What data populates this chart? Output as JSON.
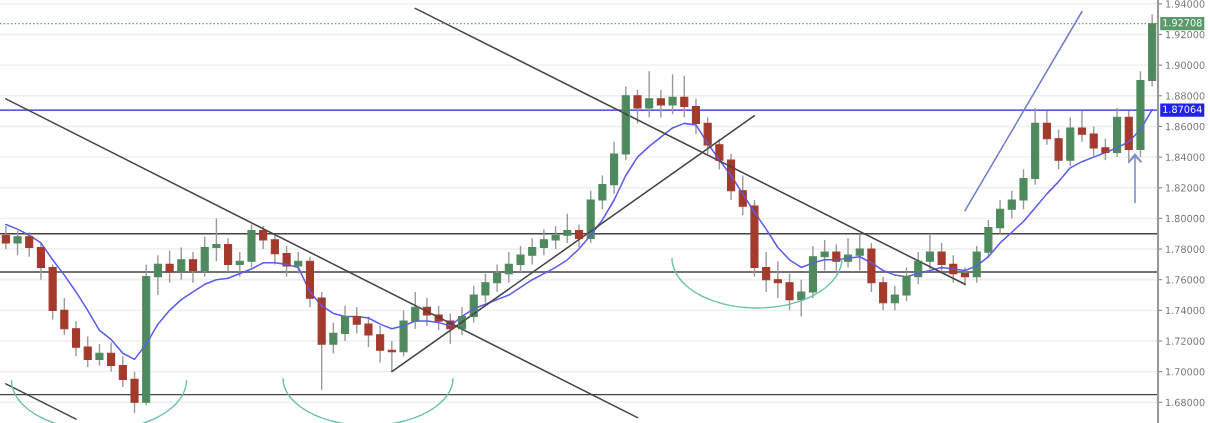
{
  "chart_data": {
    "type": "candlestick",
    "categories": [
      null,
      null,
      null,
      null,
      null,
      null,
      null,
      null,
      null,
      null,
      null,
      null,
      null,
      null,
      null,
      null,
      null,
      null,
      null,
      null,
      null,
      null,
      null,
      null,
      null,
      null,
      null,
      null,
      null,
      null,
      null,
      null,
      null,
      null,
      null,
      null,
      null,
      null,
      null,
      null,
      null,
      null,
      null,
      null,
      null,
      null,
      null,
      null,
      null,
      null,
      null,
      null,
      null,
      null,
      null,
      null,
      null,
      null,
      null,
      null,
      null,
      null,
      null,
      null,
      null,
      null,
      null,
      null,
      null,
      null,
      null,
      null,
      null,
      null,
      null,
      null,
      null,
      null,
      null,
      null,
      null,
      null,
      null,
      null,
      null,
      null,
      null,
      null,
      null,
      null,
      null,
      null,
      null,
      null,
      null,
      null,
      null,
      null,
      null
    ],
    "ohlc": [
      [
        1.789,
        1.795,
        1.78,
        1.784
      ],
      [
        1.784,
        1.792,
        1.776,
        1.788
      ],
      [
        1.788,
        1.791,
        1.775,
        1.781
      ],
      [
        1.781,
        1.784,
        1.76,
        1.768
      ],
      [
        1.768,
        1.77,
        1.734,
        1.74
      ],
      [
        1.74,
        1.748,
        1.724,
        1.728
      ],
      [
        1.728,
        1.733,
        1.71,
        1.716
      ],
      [
        1.716,
        1.723,
        1.703,
        1.708
      ],
      [
        1.708,
        1.718,
        1.704,
        1.712
      ],
      [
        1.712,
        1.719,
        1.7,
        1.704
      ],
      [
        1.704,
        1.71,
        1.69,
        1.695
      ],
      [
        1.695,
        1.7,
        1.673,
        1.68
      ],
      [
        1.68,
        1.77,
        1.678,
        1.762
      ],
      [
        1.762,
        1.776,
        1.75,
        1.77
      ],
      [
        1.77,
        1.779,
        1.758,
        1.765
      ],
      [
        1.765,
        1.781,
        1.76,
        1.773
      ],
      [
        1.773,
        1.778,
        1.758,
        1.766
      ],
      [
        1.766,
        1.788,
        1.762,
        1.781
      ],
      [
        1.781,
        1.8,
        1.772,
        1.783
      ],
      [
        1.783,
        1.787,
        1.765,
        1.77
      ],
      [
        1.77,
        1.778,
        1.762,
        1.772
      ],
      [
        1.772,
        1.796,
        1.768,
        1.792
      ],
      [
        1.792,
        1.795,
        1.78,
        1.786
      ],
      [
        1.786,
        1.79,
        1.77,
        1.777
      ],
      [
        1.777,
        1.782,
        1.762,
        1.769
      ],
      [
        1.769,
        1.778,
        1.764,
        1.772
      ],
      [
        1.772,
        1.775,
        1.742,
        1.748
      ],
      [
        1.748,
        1.752,
        1.688,
        1.718
      ],
      [
        1.718,
        1.732,
        1.712,
        1.725
      ],
      [
        1.725,
        1.743,
        1.72,
        1.736
      ],
      [
        1.736,
        1.742,
        1.725,
        1.731
      ],
      [
        1.731,
        1.736,
        1.716,
        1.724
      ],
      [
        1.724,
        1.73,
        1.706,
        1.714
      ],
      [
        1.714,
        1.72,
        1.7,
        1.713
      ],
      [
        1.713,
        1.74,
        1.71,
        1.733
      ],
      [
        1.733,
        1.752,
        1.728,
        1.742
      ],
      [
        1.742,
        1.748,
        1.73,
        1.737
      ],
      [
        1.737,
        1.743,
        1.727,
        1.733
      ],
      [
        1.733,
        1.738,
        1.718,
        1.728
      ],
      [
        1.728,
        1.742,
        1.724,
        1.736
      ],
      [
        1.736,
        1.756,
        1.732,
        1.75
      ],
      [
        1.75,
        1.764,
        1.745,
        1.758
      ],
      [
        1.758,
        1.77,
        1.752,
        1.764
      ],
      [
        1.764,
        1.778,
        1.758,
        1.77
      ],
      [
        1.77,
        1.782,
        1.765,
        1.776
      ],
      [
        1.776,
        1.787,
        1.77,
        1.781
      ],
      [
        1.781,
        1.793,
        1.776,
        1.786
      ],
      [
        1.786,
        1.795,
        1.78,
        1.789
      ],
      [
        1.789,
        1.803,
        1.784,
        1.792
      ],
      [
        1.792,
        1.796,
        1.781,
        1.787
      ],
      [
        1.787,
        1.818,
        1.784,
        1.812
      ],
      [
        1.812,
        1.828,
        1.806,
        1.822
      ],
      [
        1.822,
        1.85,
        1.816,
        1.842
      ],
      [
        1.842,
        1.886,
        1.838,
        1.88
      ],
      [
        1.88,
        1.884,
        1.862,
        1.872
      ],
      [
        1.872,
        1.896,
        1.866,
        1.878
      ],
      [
        1.878,
        1.884,
        1.866,
        1.874
      ],
      [
        1.874,
        1.894,
        1.868,
        1.879
      ],
      [
        1.879,
        1.893,
        1.866,
        1.873
      ],
      [
        1.873,
        1.878,
        1.855,
        1.862
      ],
      [
        1.862,
        1.866,
        1.842,
        1.848
      ],
      [
        1.848,
        1.852,
        1.832,
        1.838
      ],
      [
        1.838,
        1.842,
        1.812,
        1.818
      ],
      [
        1.818,
        1.828,
        1.802,
        1.808
      ],
      [
        1.808,
        1.812,
        1.762,
        1.768
      ],
      [
        1.768,
        1.778,
        1.752,
        1.76
      ],
      [
        1.76,
        1.772,
        1.748,
        1.758
      ],
      [
        1.758,
        1.764,
        1.74,
        1.747
      ],
      [
        1.747,
        1.76,
        1.736,
        1.752
      ],
      [
        1.752,
        1.782,
        1.748,
        1.775
      ],
      [
        1.775,
        1.786,
        1.766,
        1.778
      ],
      [
        1.778,
        1.783,
        1.764,
        1.772
      ],
      [
        1.772,
        1.787,
        1.768,
        1.776
      ],
      [
        1.776,
        1.79,
        1.766,
        1.78
      ],
      [
        1.78,
        1.784,
        1.752,
        1.758
      ],
      [
        1.758,
        1.762,
        1.74,
        1.745
      ],
      [
        1.745,
        1.756,
        1.74,
        1.75
      ],
      [
        1.75,
        1.768,
        1.746,
        1.762
      ],
      [
        1.762,
        1.778,
        1.757,
        1.772
      ],
      [
        1.772,
        1.79,
        1.767,
        1.778
      ],
      [
        1.778,
        1.784,
        1.764,
        1.77
      ],
      [
        1.77,
        1.776,
        1.758,
        1.764
      ],
      [
        1.764,
        1.768,
        1.756,
        1.762
      ],
      [
        1.762,
        1.782,
        1.758,
        1.778
      ],
      [
        1.778,
        1.799,
        1.774,
        1.794
      ],
      [
        1.794,
        1.812,
        1.79,
        1.806
      ],
      [
        1.806,
        1.818,
        1.8,
        1.812
      ],
      [
        1.812,
        1.832,
        1.806,
        1.826
      ],
      [
        1.826,
        1.872,
        1.822,
        1.862
      ],
      [
        1.862,
        1.87,
        1.848,
        1.852
      ],
      [
        1.852,
        1.858,
        1.832,
        1.838
      ],
      [
        1.838,
        1.866,
        1.834,
        1.859
      ],
      [
        1.859,
        1.87,
        1.85,
        1.855
      ],
      [
        1.855,
        1.86,
        1.84,
        1.846
      ],
      [
        1.846,
        1.852,
        1.838,
        1.843
      ],
      [
        1.843,
        1.872,
        1.84,
        1.866
      ],
      [
        1.866,
        1.87,
        1.836,
        1.845
      ],
      [
        1.845,
        1.896,
        1.84,
        1.89
      ],
      [
        1.89,
        1.933,
        1.886,
        1.927
      ]
    ],
    "colors": [
      "#a33a2c",
      "#4f8a5f",
      "#a33a2c",
      "#a33a2c",
      "#a33a2c",
      "#a33a2c",
      "#a33a2c",
      "#a33a2c",
      "#4f8a5f",
      "#a33a2c",
      "#a33a2c",
      "#a33a2c",
      "#4f8a5f",
      "#4f8a5f",
      "#a33a2c",
      "#4f8a5f",
      "#a33a2c",
      "#4f8a5f",
      "#4f8a5f",
      "#a33a2c",
      "#4f8a5f",
      "#4f8a5f",
      "#a33a2c",
      "#a33a2c",
      "#a33a2c",
      "#4f8a5f",
      "#a33a2c",
      "#a33a2c",
      "#4f8a5f",
      "#4f8a5f",
      "#a33a2c",
      "#a33a2c",
      "#a33a2c",
      "#a33a2c",
      "#4f8a5f",
      "#4f8a5f",
      "#a33a2c",
      "#a33a2c",
      "#a33a2c",
      "#4f8a5f",
      "#4f8a5f",
      "#4f8a5f",
      "#4f8a5f",
      "#4f8a5f",
      "#4f8a5f",
      "#4f8a5f",
      "#4f8a5f",
      "#4f8a5f",
      "#4f8a5f",
      "#a33a2c",
      "#4f8a5f",
      "#4f8a5f",
      "#4f8a5f",
      "#4f8a5f",
      "#a33a2c",
      "#4f8a5f",
      "#a33a2c",
      "#4f8a5f",
      "#a33a2c",
      "#a33a2c",
      "#a33a2c",
      "#a33a2c",
      "#a33a2c",
      "#a33a2c",
      "#a33a2c",
      "#a33a2c",
      "#a33a2c",
      "#a33a2c",
      "#4f8a5f",
      "#4f8a5f",
      "#4f8a5f",
      "#a33a2c",
      "#4f8a5f",
      "#4f8a5f",
      "#a33a2c",
      "#a33a2c",
      "#4f8a5f",
      "#4f8a5f",
      "#4f8a5f",
      "#4f8a5f",
      "#a33a2c",
      "#a33a2c",
      "#a33a2c",
      "#4f8a5f",
      "#4f8a5f",
      "#4f8a5f",
      "#4f8a5f",
      "#4f8a5f",
      "#4f8a5f",
      "#a33a2c",
      "#a33a2c",
      "#4f8a5f",
      "#a33a2c",
      "#a33a2c",
      "#a33a2c",
      "#4f8a5f",
      "#a33a2c",
      "#4f8a5f",
      "#4f8a5f"
    ],
    "series": [
      {
        "type": "line",
        "color": "#5b5bf5",
        "values": [
          1.796,
          1.793,
          1.789,
          1.784,
          1.773,
          1.763,
          1.752,
          1.74,
          1.727,
          1.721,
          1.712,
          1.708,
          1.718,
          1.731,
          1.74,
          1.747,
          1.752,
          1.757,
          1.76,
          1.761,
          1.764,
          1.767,
          1.771,
          1.771,
          1.77,
          1.768,
          1.752,
          1.743,
          1.738,
          1.736,
          1.736,
          1.735,
          1.731,
          1.728,
          1.73,
          1.733,
          1.733,
          1.732,
          1.73,
          1.736,
          1.741,
          1.744,
          1.747,
          1.75,
          1.755,
          1.76,
          1.764,
          1.768,
          1.773,
          1.78,
          1.789,
          1.799,
          1.812,
          1.828,
          1.84,
          1.847,
          1.853,
          1.859,
          1.862,
          1.861,
          1.849,
          1.838,
          1.828,
          1.816,
          1.804,
          1.793,
          1.781,
          1.773,
          1.768,
          1.771,
          1.773,
          1.773,
          1.774,
          1.775,
          1.771,
          1.766,
          1.763,
          1.762,
          1.764,
          1.766,
          1.768,
          1.767,
          1.766,
          1.769,
          1.775,
          1.784,
          1.791,
          1.798,
          1.807,
          1.816,
          1.824,
          1.833,
          1.837,
          1.84,
          1.843,
          1.846,
          1.85,
          1.858,
          1.871
        ]
      },
      {
        "type": "line",
        "color": "#444444",
        "values": [
          1.878,
          null,
          null,
          null,
          null,
          null,
          null,
          null,
          null,
          null,
          null,
          null,
          null,
          null,
          null,
          null,
          null,
          null,
          null,
          null,
          null,
          null,
          null,
          null,
          null,
          null,
          null,
          null,
          null,
          null,
          null,
          null,
          null,
          null,
          null,
          null,
          null,
          null,
          null,
          null,
          null,
          null,
          null,
          null,
          null,
          null,
          null,
          null,
          null,
          null,
          null,
          null,
          null,
          null,
          1.67,
          null,
          null,
          null,
          null,
          null,
          null,
          null,
          null,
          null,
          null,
          null,
          null,
          null,
          null,
          null,
          null,
          null,
          null,
          null,
          null,
          null,
          null,
          null,
          null,
          null,
          null,
          null,
          null,
          null,
          null,
          null,
          null,
          null,
          null,
          null,
          null,
          null,
          null,
          null,
          null,
          null,
          null,
          null,
          null
        ]
      },
      {
        "type": "line",
        "color": "#444444",
        "values": [
          null,
          null,
          null,
          null,
          null,
          null,
          null,
          null,
          null,
          null,
          null,
          null,
          null,
          null,
          null,
          null,
          null,
          null,
          null,
          null,
          null,
          null,
          null,
          null,
          null,
          null,
          null,
          null,
          null,
          null,
          null,
          null,
          null,
          null,
          null,
          1.937,
          null,
          null,
          null,
          null,
          null,
          null,
          null,
          null,
          null,
          null,
          null,
          null,
          null,
          null,
          null,
          null,
          null,
          null,
          null,
          null,
          null,
          null,
          null,
          null,
          null,
          null,
          null,
          null,
          null,
          null,
          null,
          null,
          null,
          null,
          null,
          null,
          null,
          null,
          null,
          null,
          null,
          null,
          null,
          null,
          null,
          null,
          1.757,
          null,
          null,
          null,
          null,
          null,
          null,
          null,
          null,
          null,
          null,
          null,
          null,
          null,
          null,
          null,
          null
        ]
      },
      {
        "type": "line",
        "color": "#444444",
        "values": [
          1.692,
          null,
          null,
          null,
          null,
          null,
          1.669,
          null,
          null,
          null,
          null,
          null,
          null,
          null,
          null,
          null,
          null,
          null,
          null,
          null,
          null,
          null,
          null,
          null,
          null,
          null,
          null,
          null,
          null,
          null,
          null,
          null,
          null,
          null,
          null,
          null,
          null,
          null,
          null,
          null,
          null,
          null,
          null,
          null,
          null,
          null,
          null,
          null,
          null,
          null,
          null,
          null,
          null,
          null,
          null,
          null,
          null,
          null,
          null,
          null,
          null,
          null,
          null,
          null,
          null,
          null,
          null,
          null,
          null,
          null,
          null,
          null,
          null,
          null,
          null,
          null,
          null,
          null,
          null,
          null,
          null,
          null,
          null,
          null,
          null,
          null,
          null,
          null,
          null,
          null,
          null,
          null,
          null,
          null,
          null,
          null,
          null,
          null,
          null
        ]
      },
      {
        "type": "line",
        "color": "#444444",
        "values": [
          null,
          null,
          null,
          null,
          null,
          null,
          null,
          null,
          null,
          null,
          null,
          null,
          null,
          null,
          null,
          null,
          null,
          null,
          null,
          null,
          null,
          null,
          null,
          null,
          null,
          null,
          null,
          null,
          null,
          null,
          null,
          null,
          null,
          1.7,
          null,
          null,
          null,
          null,
          null,
          null,
          null,
          null,
          null,
          null,
          null,
          null,
          null,
          null,
          null,
          null,
          null,
          null,
          null,
          null,
          null,
          null,
          null,
          null,
          null,
          null,
          null,
          null,
          null,
          null,
          1.867,
          null,
          null,
          null,
          null,
          null,
          null,
          null,
          null,
          null,
          null,
          null,
          null,
          null,
          null,
          null,
          null,
          null,
          null,
          null,
          null,
          null,
          null,
          null,
          null,
          null,
          null,
          null,
          null,
          null,
          null,
          null,
          null,
          null,
          null
        ]
      },
      {
        "type": "line",
        "color": "#7080c8",
        "values": [
          null,
          null,
          null,
          null,
          null,
          null,
          null,
          null,
          null,
          null,
          null,
          null,
          null,
          null,
          null,
          null,
          null,
          null,
          null,
          null,
          null,
          null,
          null,
          null,
          null,
          null,
          null,
          null,
          null,
          null,
          null,
          null,
          null,
          null,
          null,
          null,
          null,
          null,
          null,
          null,
          null,
          null,
          null,
          null,
          null,
          null,
          null,
          null,
          null,
          null,
          null,
          null,
          null,
          null,
          null,
          null,
          null,
          null,
          null,
          null,
          null,
          null,
          null,
          null,
          null,
          null,
          null,
          null,
          null,
          null,
          null,
          null,
          null,
          null,
          null,
          null,
          null,
          null,
          null,
          null,
          null,
          null,
          1.805,
          null,
          null,
          null,
          null,
          null,
          null,
          null,
          null,
          null,
          1.935,
          null,
          null,
          null,
          null,
          null,
          null
        ]
      }
    ],
    "ref_lines": [
      {
        "axis": "y",
        "value": 1.79,
        "color": "#444444",
        "line_style": "solid"
      },
      {
        "axis": "y",
        "value": 1.765,
        "color": "#444444",
        "line_style": "solid"
      },
      {
        "axis": "y",
        "value": 1.685,
        "color": "#444444",
        "line_style": "solid"
      },
      {
        "axis": "y",
        "value": 1.87064,
        "label": "1.87064",
        "color": "#2222ee",
        "line_style": "solid"
      },
      {
        "axis": "y",
        "value": 1.92708,
        "label": "1.92708",
        "color": "#5a9a6a",
        "line_style": "dotted"
      }
    ],
    "ylim": [
      1.6665,
      1.9425
    ],
    "yticks": [
      {
        "value": 1.68,
        "label": "1.68000"
      },
      {
        "value": 1.7,
        "label": "1.70000"
      },
      {
        "value": 1.72,
        "label": "1.72000"
      },
      {
        "value": 1.74,
        "label": "1.74000"
      },
      {
        "value": 1.76,
        "label": "1.76000"
      },
      {
        "value": 1.78,
        "label": "1.78000"
      },
      {
        "value": 1.8,
        "label": "1.80000"
      },
      {
        "value": 1.82,
        "label": "1.82000"
      },
      {
        "value": 1.84,
        "label": "1.84000"
      },
      {
        "value": 1.86,
        "label": "1.86000"
      },
      {
        "value": 1.88,
        "label": "1.88000"
      },
      {
        "value": 1.9,
        "label": "1.90000"
      },
      {
        "value": 1.92,
        "label": "1.92000"
      },
      {
        "value": 1.94,
        "label": "1.94000"
      }
    ],
    "tick_labels": "y",
    "grid": "y"
  }
}
